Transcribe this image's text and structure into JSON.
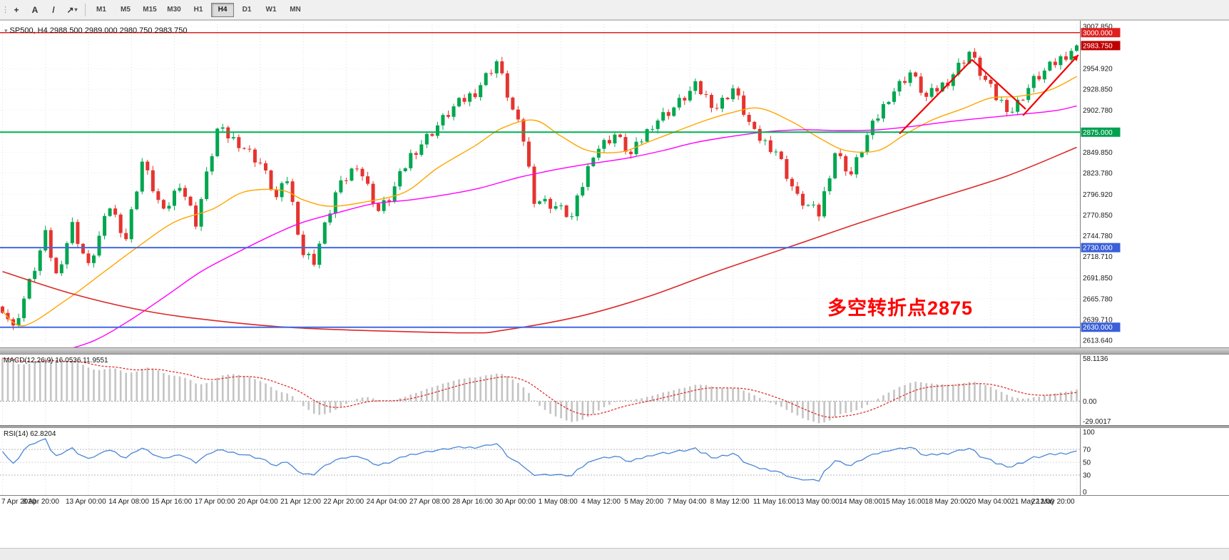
{
  "toolbar": {
    "text_tool_label": "A",
    "timeframes": [
      "M1",
      "M5",
      "M15",
      "M30",
      "H1",
      "H4",
      "D1",
      "W1",
      "MN"
    ],
    "active_timeframe": "H4"
  },
  "chart": {
    "title": "SP500, H4  2988.500 2989.000 2980.750 2983.750",
    "annotation": {
      "text": "多空转折点2875",
      "color": "#ff0000"
    },
    "x_axis_labels": [
      "7 Apr 2020",
      "8 Apr 20:00",
      "13 Apr 00:00",
      "14 Apr 08:00",
      "15 Apr 16:00",
      "17 Apr 00:00",
      "20 Apr 04:00",
      "21 Apr 12:00",
      "22 Apr 20:00",
      "24 Apr 04:00",
      "27 Apr 08:00",
      "28 Apr 16:00",
      "30 Apr 00:00",
      "1 May 08:00",
      "4 May 12:00",
      "5 May 20:00",
      "7 May 04:00",
      "8 May 12:00",
      "11 May 16:00",
      "13 May 00:00",
      "14 May 08:00",
      "15 May 16:00",
      "18 May 20:00",
      "20 May 04:00",
      "21 May 12:00",
      "22 May 20:00"
    ],
    "y_axis": [
      {
        "text": "3007.850",
        "value": 3007.85,
        "style": "plain"
      },
      {
        "text": "3000.000",
        "value": 3000.0,
        "style": "resistance"
      },
      {
        "text": "2983.750",
        "value": 2983.75,
        "style": "current"
      },
      {
        "text": "2954.920",
        "value": 2954.92,
        "style": "plain"
      },
      {
        "text": "2928.850",
        "value": 2928.85,
        "style": "plain"
      },
      {
        "text": "2902.780",
        "value": 2902.78,
        "style": "plain"
      },
      {
        "text": "2875.000",
        "value": 2875.0,
        "style": "pivot"
      },
      {
        "text": "2849.850",
        "value": 2849.85,
        "style": "plain"
      },
      {
        "text": "2823.780",
        "value": 2823.78,
        "style": "plain"
      },
      {
        "text": "2796.920",
        "value": 2796.92,
        "style": "plain"
      },
      {
        "text": "2770.850",
        "value": 2770.85,
        "style": "plain"
      },
      {
        "text": "2744.780",
        "value": 2744.78,
        "style": "plain"
      },
      {
        "text": "2730.000",
        "value": 2730.0,
        "style": "support"
      },
      {
        "text": "2718.710",
        "value": 2718.71,
        "style": "plain"
      },
      {
        "text": "2691.850",
        "value": 2691.85,
        "style": "plain"
      },
      {
        "text": "2665.780",
        "value": 2665.78,
        "style": "plain"
      },
      {
        "text": "2639.710",
        "value": 2639.71,
        "style": "plain"
      },
      {
        "text": "2630.000",
        "value": 2630.0,
        "style": "support"
      },
      {
        "text": "2613.640",
        "value": 2613.64,
        "style": "plain"
      }
    ]
  },
  "chart_data": {
    "type": "candlestick",
    "symbol": "SP500",
    "timeframe": "H4",
    "ohlc_display": [
      "2988.500",
      "2989.000",
      "2980.750",
      "2983.750"
    ],
    "price_max": 3007.85,
    "price_min": 2613.64,
    "candle_count": 201,
    "close_anchors": [
      [
        0,
        2655
      ],
      [
        2,
        2628
      ],
      [
        5,
        2685
      ],
      [
        8,
        2745
      ],
      [
        10,
        2695
      ],
      [
        13,
        2758
      ],
      [
        16,
        2705
      ],
      [
        20,
        2782
      ],
      [
        23,
        2742
      ],
      [
        26,
        2838
      ],
      [
        30,
        2772
      ],
      [
        33,
        2812
      ],
      [
        36,
        2762
      ],
      [
        40,
        2878
      ],
      [
        44,
        2862
      ],
      [
        48,
        2836
      ],
      [
        51,
        2792
      ],
      [
        53,
        2816
      ],
      [
        56,
        2722
      ],
      [
        58,
        2714
      ],
      [
        62,
        2798
      ],
      [
        66,
        2836
      ],
      [
        70,
        2776
      ],
      [
        72,
        2792
      ],
      [
        76,
        2846
      ],
      [
        80,
        2876
      ],
      [
        84,
        2906
      ],
      [
        88,
        2926
      ],
      [
        92,
        2964
      ],
      [
        95,
        2902
      ],
      [
        97,
        2866
      ],
      [
        99,
        2792
      ],
      [
        103,
        2782
      ],
      [
        106,
        2768
      ],
      [
        110,
        2850
      ],
      [
        114,
        2872
      ],
      [
        117,
        2846
      ],
      [
        121,
        2886
      ],
      [
        125,
        2906
      ],
      [
        129,
        2932
      ],
      [
        133,
        2906
      ],
      [
        136,
        2930
      ],
      [
        140,
        2872
      ],
      [
        144,
        2852
      ],
      [
        148,
        2792
      ],
      [
        152,
        2772
      ],
      [
        155,
        2850
      ],
      [
        158,
        2822
      ],
      [
        161,
        2870
      ],
      [
        165,
        2920
      ],
      [
        169,
        2950
      ],
      [
        172,
        2918
      ],
      [
        176,
        2940
      ],
      [
        180,
        2976
      ],
      [
        182,
        2950
      ],
      [
        185,
        2918
      ],
      [
        188,
        2902
      ],
      [
        192,
        2940
      ],
      [
        196,
        2962
      ],
      [
        200,
        2984
      ]
    ],
    "ma_orange_anchors": [
      [
        0,
        2650
      ],
      [
        4,
        2632
      ],
      [
        12,
        2665
      ],
      [
        19,
        2700
      ],
      [
        25,
        2730
      ],
      [
        32,
        2762
      ],
      [
        39,
        2778
      ],
      [
        45,
        2800
      ],
      [
        52,
        2802
      ],
      [
        56,
        2790
      ],
      [
        61,
        2782
      ],
      [
        68,
        2788
      ],
      [
        75,
        2800
      ],
      [
        81,
        2830
      ],
      [
        88,
        2858
      ],
      [
        93,
        2880
      ],
      [
        99,
        2890
      ],
      [
        104,
        2870
      ],
      [
        109,
        2852
      ],
      [
        115,
        2850
      ],
      [
        120,
        2862
      ],
      [
        125,
        2875
      ],
      [
        131,
        2890
      ],
      [
        136,
        2900
      ],
      [
        141,
        2905
      ],
      [
        147,
        2888
      ],
      [
        152,
        2868
      ],
      [
        157,
        2852
      ],
      [
        163,
        2852
      ],
      [
        168,
        2872
      ],
      [
        173,
        2890
      ],
      [
        179,
        2905
      ],
      [
        184,
        2918
      ],
      [
        189,
        2920
      ],
      [
        195,
        2928
      ],
      [
        200,
        2945
      ]
    ],
    "ma_magenta_anchors": [
      [
        10,
        2598
      ],
      [
        17,
        2613
      ],
      [
        24,
        2640
      ],
      [
        31,
        2672
      ],
      [
        37,
        2700
      ],
      [
        44,
        2725
      ],
      [
        51,
        2748
      ],
      [
        56,
        2762
      ],
      [
        63,
        2775
      ],
      [
        69,
        2785
      ],
      [
        76,
        2790
      ],
      [
        83,
        2797
      ],
      [
        89,
        2805
      ],
      [
        96,
        2818
      ],
      [
        103,
        2828
      ],
      [
        109,
        2835
      ],
      [
        116,
        2842
      ],
      [
        123,
        2852
      ],
      [
        129,
        2862
      ],
      [
        136,
        2870
      ],
      [
        143,
        2876
      ],
      [
        149,
        2878
      ],
      [
        156,
        2877
      ],
      [
        163,
        2878
      ],
      [
        169,
        2882
      ],
      [
        176,
        2888
      ],
      [
        183,
        2893
      ],
      [
        189,
        2897
      ],
      [
        196,
        2902
      ],
      [
        200,
        2908
      ]
    ],
    "ma_red_anchors": [
      [
        0,
        2700
      ],
      [
        13,
        2672
      ],
      [
        27,
        2650
      ],
      [
        40,
        2638
      ],
      [
        53,
        2630
      ],
      [
        67,
        2626
      ],
      [
        87,
        2623
      ],
      [
        93,
        2626
      ],
      [
        107,
        2643
      ],
      [
        120,
        2668
      ],
      [
        133,
        2700
      ],
      [
        147,
        2732
      ],
      [
        160,
        2762
      ],
      [
        173,
        2790
      ],
      [
        187,
        2820
      ],
      [
        200,
        2856
      ]
    ],
    "trendlines": [
      [
        167,
        2873,
        180.5,
        2966
      ],
      [
        180.5,
        2966,
        190.5,
        2904
      ],
      [
        190,
        2896,
        200.3,
        2972
      ]
    ],
    "hlines": [
      {
        "name": "resistance-3000",
        "price": 3000.0,
        "color": "#e02020",
        "width": 1.6
      },
      {
        "name": "pivot-2875",
        "price": 2875.0,
        "color": "#00b050",
        "width": 2
      },
      {
        "name": "support-2730",
        "price": 2730.0,
        "color": "#4169e1",
        "width": 2
      },
      {
        "name": "support-2630",
        "price": 2630.0,
        "color": "#4169e1",
        "width": 2
      }
    ],
    "label_colors": {
      "resistance": "#e02020",
      "current": "#c00000",
      "pivot": "#00a050",
      "support": "#3a5fd9"
    },
    "colors": {
      "up": "#00a64f",
      "down": "#e53430",
      "ma_fast": "#ffa500",
      "ma_mid": "#ff00ff",
      "ma_slow": "#dc2828",
      "trend": "#f00000",
      "rsi": "#4a86d8",
      "macd_signal": "#e02020",
      "macd_hist": "#c4c4c4"
    },
    "macd": {
      "label_full": "MACD(12,26,9) 16.0536 11.9551",
      "scale_labels": [
        {
          "text": "58.1136",
          "value": 58.1136
        },
        {
          "text": "0.00",
          "value": 0
        },
        {
          "text": "-29.0017",
          "value": -29.0017
        }
      ],
      "scale_max": 58.1136,
      "scale_min": -29.0017,
      "seed_ema12": 2610,
      "seed_ema26": 2552,
      "seed_signal": 57
    },
    "rsi": {
      "label_full": "RSI(14) 62.8204",
      "levels": [
        {
          "text": "100",
          "value": 100
        },
        {
          "text": "70",
          "value": 70
        },
        {
          "text": "50",
          "value": 50
        },
        {
          "text": "30",
          "value": 30
        },
        {
          "text": "0",
          "value": 0
        }
      ],
      "guide_levels": [
        70,
        50,
        30
      ],
      "seed_avg_gain": 2.4,
      "seed_avg_loss": 1.2
    }
  }
}
